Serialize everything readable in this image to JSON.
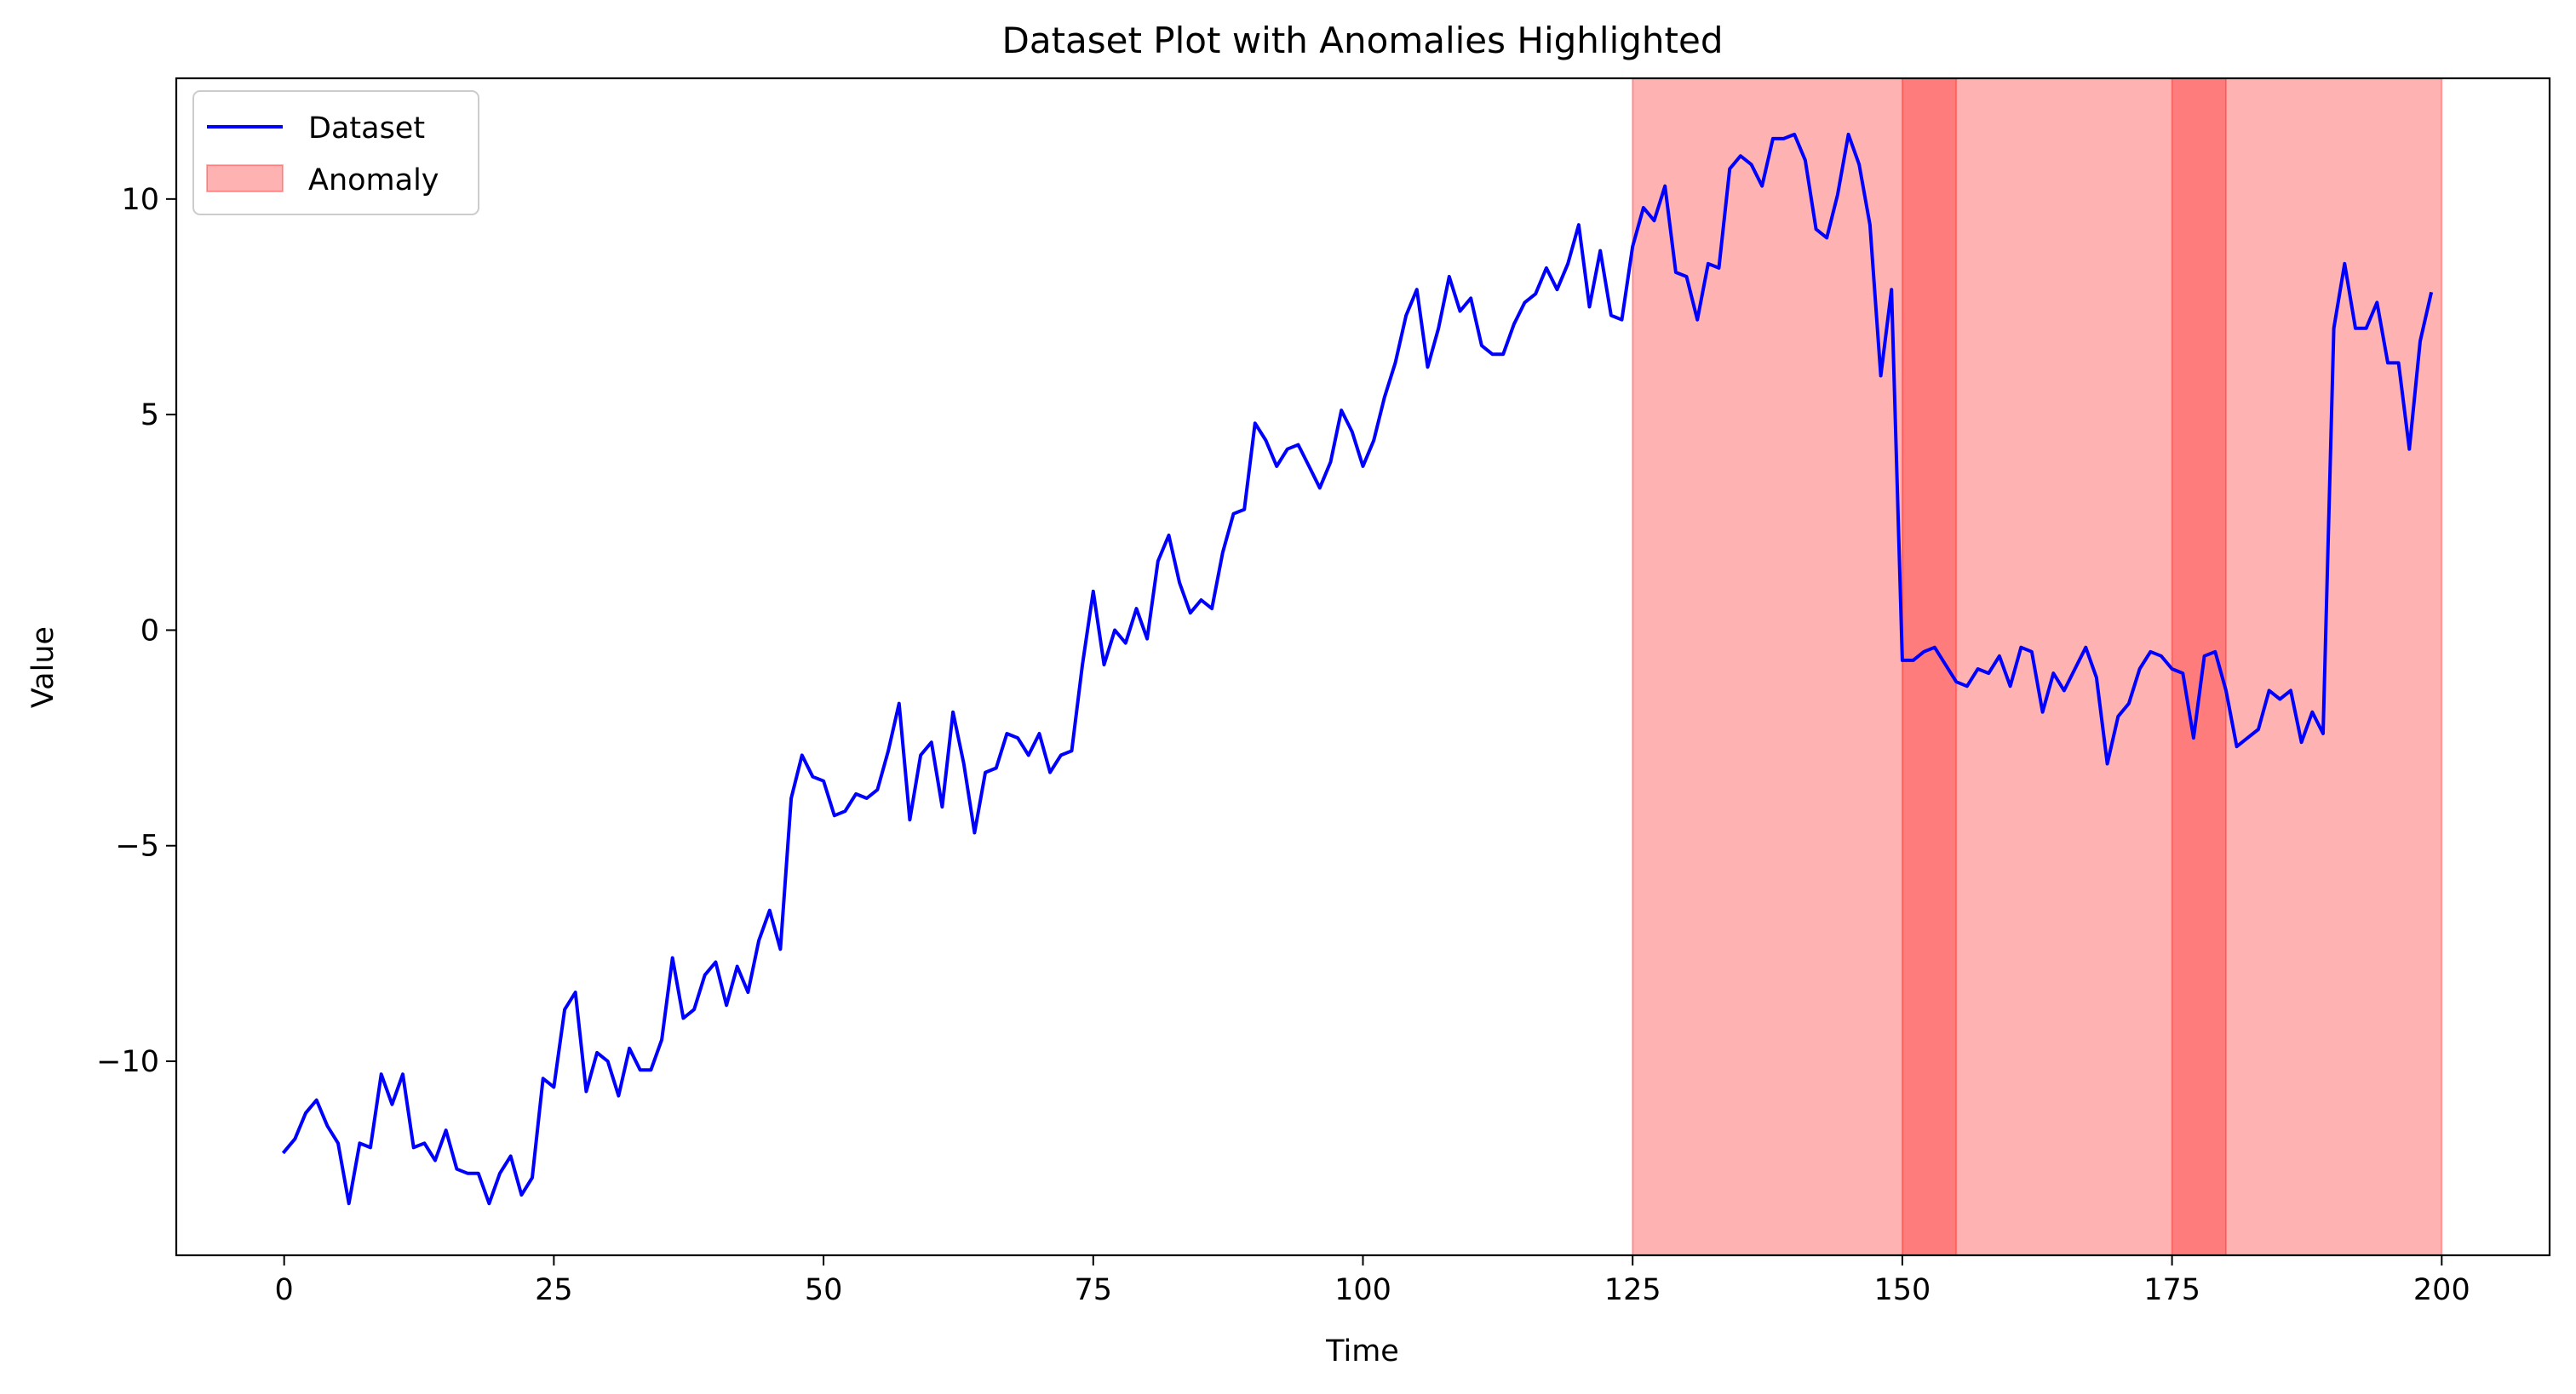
{
  "chart_data": {
    "type": "line",
    "title": "Dataset Plot with Anomalies Highlighted",
    "xlabel": "Time",
    "ylabel": "Value",
    "xlim": [
      -10,
      210
    ],
    "ylim": [
      -14.5,
      12.8
    ],
    "xticks": [
      0,
      25,
      50,
      75,
      100,
      125,
      150,
      175,
      200
    ],
    "xtick_labels": [
      "0",
      "25",
      "50",
      "75",
      "100",
      "125",
      "150",
      "175",
      "200"
    ],
    "yticks": [
      -10,
      -5,
      0,
      5,
      10
    ],
    "ytick_labels": [
      "−10",
      "−5",
      "0",
      "5",
      "10"
    ],
    "grid": false,
    "legend_position": "upper-left",
    "series": [
      {
        "name": "Dataset",
        "color": "#0000ff",
        "x": [
          0,
          1,
          2,
          3,
          4,
          5,
          6,
          7,
          8,
          9,
          10,
          11,
          12,
          13,
          14,
          15,
          16,
          17,
          18,
          19,
          20,
          21,
          22,
          23,
          24,
          25,
          26,
          27,
          28,
          29,
          30,
          31,
          32,
          33,
          34,
          35,
          36,
          37,
          38,
          39,
          40,
          41,
          42,
          43,
          44,
          45,
          46,
          47,
          48,
          49,
          50,
          51,
          52,
          53,
          54,
          55,
          56,
          57,
          58,
          59,
          60,
          61,
          62,
          63,
          64,
          65,
          66,
          67,
          68,
          69,
          70,
          71,
          72,
          73,
          74,
          75,
          76,
          77,
          78,
          79,
          80,
          81,
          82,
          83,
          84,
          85,
          86,
          87,
          88,
          89,
          90,
          91,
          92,
          93,
          94,
          95,
          96,
          97,
          98,
          99,
          100,
          101,
          102,
          103,
          104,
          105,
          106,
          107,
          108,
          109,
          110,
          111,
          112,
          113,
          114,
          115,
          116,
          117,
          118,
          119,
          120,
          121,
          122,
          123,
          124,
          125,
          126,
          127,
          128,
          129,
          130,
          131,
          132,
          133,
          134,
          135,
          136,
          137,
          138,
          139,
          140,
          141,
          142,
          143,
          144,
          145,
          146,
          147,
          148,
          149,
          150,
          151,
          152,
          153,
          154,
          155,
          156,
          157,
          158,
          159,
          160,
          161,
          162,
          163,
          164,
          165,
          166,
          167,
          168,
          169,
          170,
          171,
          172,
          173,
          174,
          175,
          176,
          177,
          178,
          179,
          180,
          181,
          182,
          183,
          184,
          185,
          186,
          187,
          188,
          189,
          190,
          191,
          192,
          193,
          194,
          195,
          196,
          197,
          198,
          199
        ],
        "y": [
          -12.1,
          -11.8,
          -11.2,
          -10.9,
          -11.5,
          -11.9,
          -13.3,
          -11.9,
          -12.0,
          -10.3,
          -11.0,
          -10.3,
          -12.0,
          -11.9,
          -12.3,
          -11.6,
          -12.5,
          -12.6,
          -12.6,
          -13.3,
          -12.6,
          -12.2,
          -13.1,
          -12.7,
          -10.4,
          -10.6,
          -8.8,
          -8.4,
          -10.7,
          -9.8,
          -10.0,
          -10.8,
          -9.7,
          -10.2,
          -10.2,
          -9.5,
          -7.6,
          -9.0,
          -8.8,
          -8.0,
          -7.7,
          -8.7,
          -7.8,
          -8.4,
          -7.2,
          -6.5,
          -7.4,
          -3.9,
          -2.9,
          -3.4,
          -3.5,
          -4.3,
          -4.2,
          -3.8,
          -3.9,
          -3.7,
          -2.8,
          -1.7,
          -4.4,
          -2.9,
          -2.6,
          -4.1,
          -1.9,
          -3.1,
          -4.7,
          -3.3,
          -3.2,
          -2.4,
          -2.5,
          -2.9,
          -2.4,
          -3.3,
          -2.9,
          -2.8,
          -0.8,
          0.9,
          -0.8,
          0.0,
          -0.3,
          0.5,
          -0.2,
          1.6,
          2.2,
          1.1,
          0.4,
          0.7,
          0.5,
          1.8,
          2.7,
          2.8,
          4.8,
          4.4,
          3.8,
          4.2,
          4.3,
          3.8,
          3.3,
          3.9,
          5.1,
          4.6,
          3.8,
          4.4,
          5.4,
          6.2,
          7.3,
          7.9,
          6.1,
          7.0,
          8.2,
          7.4,
          7.7,
          6.6,
          6.4,
          6.4,
          7.1,
          7.6,
          7.8,
          8.4,
          7.9,
          8.5,
          9.4,
          7.5,
          8.8,
          7.3,
          7.2,
          8.9,
          9.8,
          9.5,
          10.3,
          8.3,
          8.2,
          7.2,
          8.5,
          8.4,
          10.7,
          11.0,
          10.8,
          10.3,
          11.4,
          11.4,
          11.5,
          10.9,
          9.3,
          9.1,
          10.1,
          11.5,
          10.8,
          9.4,
          5.9,
          7.9,
          -0.7,
          -0.7,
          -0.5,
          -0.4,
          -0.8,
          -1.2,
          -1.3,
          -0.9,
          -1.0,
          -0.6,
          -1.3,
          -0.4,
          -0.5,
          -1.9,
          -1.0,
          -1.4,
          -0.9,
          -0.4,
          -1.1,
          -3.1,
          -2.0,
          -1.7,
          -0.9,
          -0.5,
          -0.6,
          -0.9,
          -1.0,
          -2.5,
          -0.6,
          -0.5,
          -1.4,
          -2.7,
          -2.5,
          -2.3,
          -1.4,
          -1.6,
          -1.4,
          -2.6,
          -1.9,
          -2.4,
          7.0,
          8.5,
          7.0,
          7.0,
          7.6,
          6.2,
          6.2,
          4.2,
          6.7,
          7.8
        ]
      }
    ],
    "anomaly_regions": {
      "name": "Anomaly",
      "color": "#ff0000",
      "alpha": 0.3,
      "ranges": [
        [
          125,
          155
        ],
        [
          150,
          180
        ],
        [
          175,
          200
        ]
      ]
    }
  }
}
